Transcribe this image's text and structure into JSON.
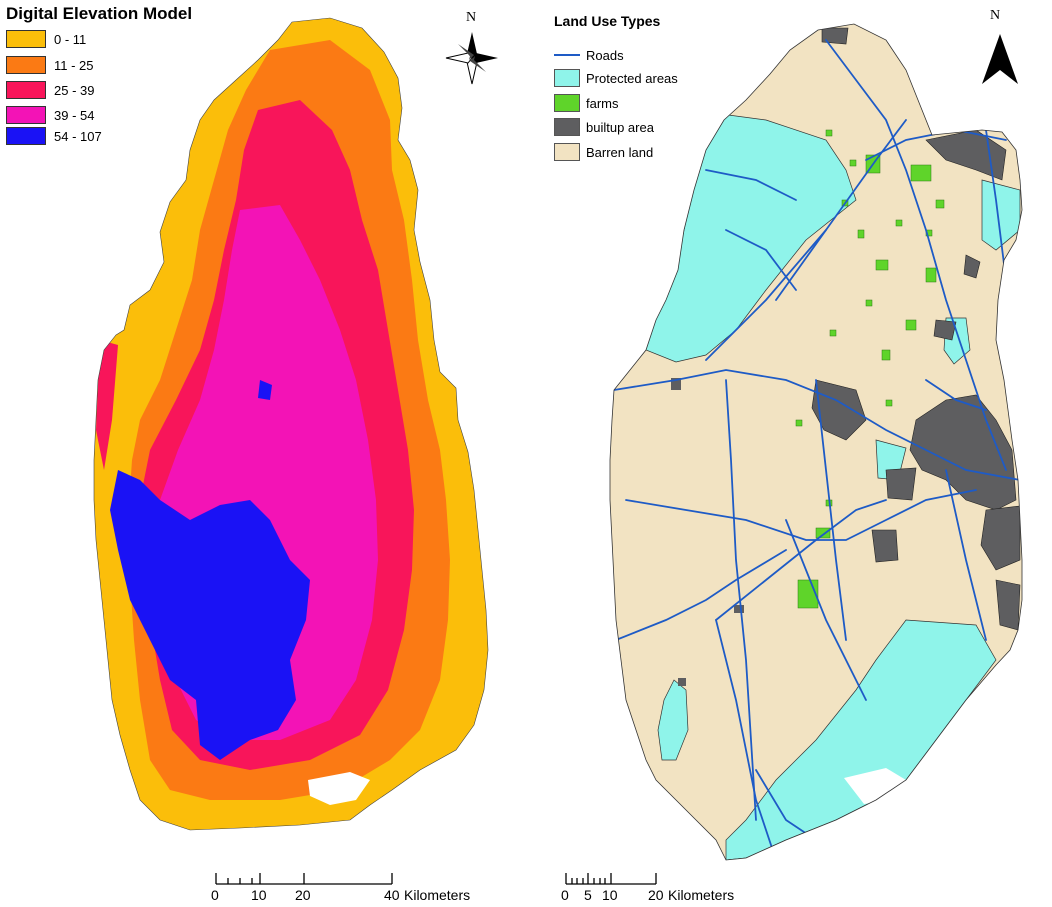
{
  "dem": {
    "title": "Digital Elevation Model",
    "classes": [
      {
        "label": "0 - 11",
        "color": "#FBBE0A"
      },
      {
        "label": "11  - 25",
        "color": "#FB7A14"
      },
      {
        "label": "25  - 39",
        "color": "#F8155A"
      },
      {
        "label": "39  - 54",
        "color": "#F313B6"
      },
      {
        "label": "54  - 107",
        "color": "#1A12F5"
      }
    ],
    "north_label": "N",
    "scale": {
      "ticks": [
        "0",
        "10",
        "20",
        "40"
      ],
      "unit": "Kilometers"
    }
  },
  "landuse": {
    "title": "Land Use Types",
    "classes": [
      {
        "label": "Roads",
        "color": "#1E5BC6",
        "kind": "line"
      },
      {
        "label": "Protected areas",
        "color": "#8FF4EA",
        "kind": "area"
      },
      {
        "label": "farms",
        "color": "#5FD42A",
        "kind": "area"
      },
      {
        "label": "builtup area",
        "color": "#5E5E60",
        "kind": "area"
      },
      {
        "label": "Barren land",
        "color": "#F2E3C2",
        "kind": "area"
      }
    ],
    "north_label": "N",
    "scale": {
      "ticks": [
        "0",
        "5",
        "10",
        "20"
      ],
      "unit": "Kilometers"
    }
  }
}
